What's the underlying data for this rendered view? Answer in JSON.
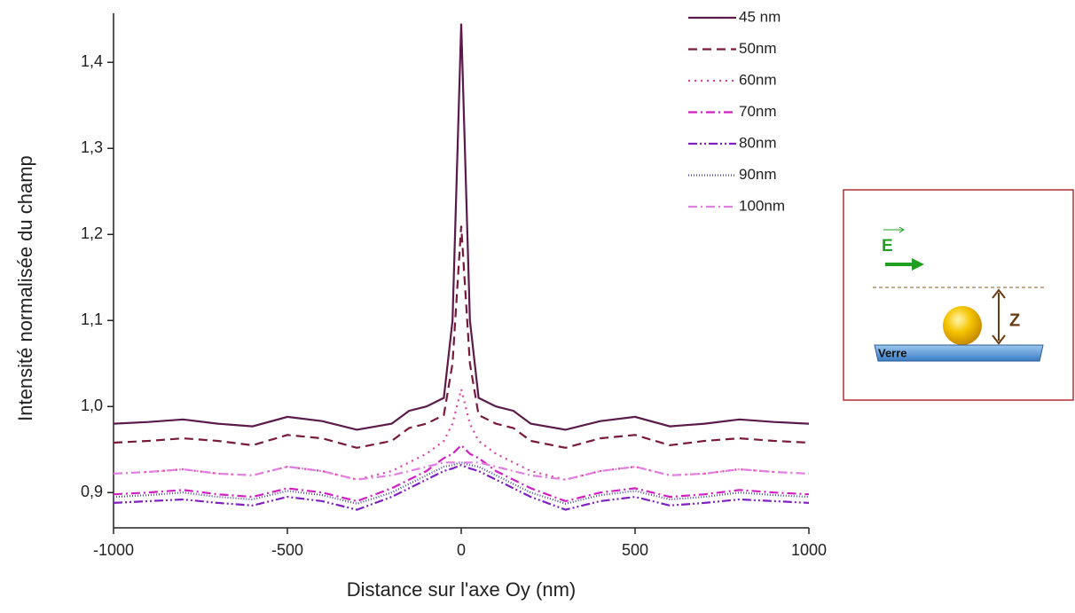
{
  "chart_data": {
    "type": "line",
    "xlabel": "Distance sur l'axe Oy (nm)",
    "ylabel": "Intensité normalisée du champ",
    "x": [
      -1000,
      -900,
      -800,
      -700,
      -600,
      -500,
      -400,
      -300,
      -200,
      -150,
      -100,
      -50,
      -25,
      0,
      25,
      50,
      100,
      150,
      200,
      300,
      400,
      500,
      600,
      700,
      800,
      900,
      1000
    ],
    "series": [
      {
        "name": "45 nm",
        "color": "#5a1a4a",
        "linestyle": "solid",
        "values": [
          0.98,
          0.982,
          0.985,
          0.98,
          0.977,
          0.988,
          0.983,
          0.973,
          0.98,
          0.995,
          1.0,
          1.01,
          1.1,
          1.445,
          1.1,
          1.01,
          1.0,
          0.995,
          0.98,
          0.973,
          0.983,
          0.988,
          0.977,
          0.98,
          0.985,
          0.982,
          0.98
        ]
      },
      {
        "name": "50nm",
        "color": "#7a1a3a",
        "linestyle": "dash",
        "values": [
          0.958,
          0.96,
          0.963,
          0.96,
          0.955,
          0.967,
          0.963,
          0.952,
          0.96,
          0.975,
          0.98,
          0.99,
          1.05,
          1.21,
          1.05,
          0.99,
          0.98,
          0.975,
          0.96,
          0.952,
          0.963,
          0.967,
          0.955,
          0.96,
          0.963,
          0.96,
          0.958
        ]
      },
      {
        "name": "60nm",
        "color": "#e040a0",
        "linestyle": "dot",
        "values": [
          0.922,
          0.924,
          0.927,
          0.922,
          0.92,
          0.93,
          0.925,
          0.915,
          0.925,
          0.935,
          0.945,
          0.96,
          0.98,
          1.02,
          0.98,
          0.96,
          0.945,
          0.935,
          0.925,
          0.915,
          0.925,
          0.93,
          0.92,
          0.922,
          0.927,
          0.924,
          0.922
        ]
      },
      {
        "name": "70nm",
        "color": "#d020c0",
        "linestyle": "dashdot",
        "values": [
          0.898,
          0.9,
          0.903,
          0.898,
          0.895,
          0.905,
          0.9,
          0.89,
          0.905,
          0.915,
          0.925,
          0.94,
          0.945,
          0.955,
          0.945,
          0.94,
          0.925,
          0.915,
          0.905,
          0.89,
          0.9,
          0.905,
          0.895,
          0.898,
          0.903,
          0.9,
          0.898
        ]
      },
      {
        "name": "80nm",
        "color": "#8020c0",
        "linestyle": "dashdotdot",
        "values": [
          0.888,
          0.89,
          0.892,
          0.888,
          0.885,
          0.895,
          0.89,
          0.88,
          0.895,
          0.905,
          0.915,
          0.925,
          0.928,
          0.932,
          0.928,
          0.925,
          0.915,
          0.905,
          0.895,
          0.88,
          0.89,
          0.895,
          0.885,
          0.888,
          0.892,
          0.89,
          0.888
        ]
      },
      {
        "name": "90nm",
        "color": "#5050a0",
        "linestyle": "shortdot",
        "values": [
          0.895,
          0.897,
          0.9,
          0.895,
          0.892,
          0.902,
          0.897,
          0.887,
          0.9,
          0.91,
          0.92,
          0.93,
          0.932,
          0.935,
          0.932,
          0.93,
          0.92,
          0.91,
          0.9,
          0.887,
          0.897,
          0.902,
          0.892,
          0.895,
          0.9,
          0.897,
          0.895
        ]
      },
      {
        "name": "100nm",
        "color": "#e080e0",
        "linestyle": "dashdot",
        "values": [
          0.922,
          0.924,
          0.927,
          0.922,
          0.92,
          0.93,
          0.925,
          0.915,
          0.92,
          0.925,
          0.93,
          0.935,
          0.935,
          0.935,
          0.935,
          0.935,
          0.93,
          0.925,
          0.92,
          0.915,
          0.925,
          0.93,
          0.92,
          0.922,
          0.927,
          0.924,
          0.922
        ]
      }
    ],
    "xlim": [
      -1000,
      1000
    ],
    "xticks": [
      -1000,
      -500,
      0,
      500,
      1000
    ],
    "ylim": [
      0.859,
      1.457
    ],
    "yticks": [
      {
        "value": 0.9,
        "label": "0,9"
      },
      {
        "value": 1.0,
        "label": "1,0"
      },
      {
        "value": 1.1,
        "label": "1,1"
      },
      {
        "value": 1.2,
        "label": "1,2"
      },
      {
        "value": 1.3,
        "label": "1,3"
      },
      {
        "value": 1.4,
        "label": "1,4"
      }
    ],
    "grid": false,
    "legend": "upper right"
  },
  "inset": {
    "field_label": "E",
    "distance_label": "Z",
    "substrate_label": "Verre"
  }
}
